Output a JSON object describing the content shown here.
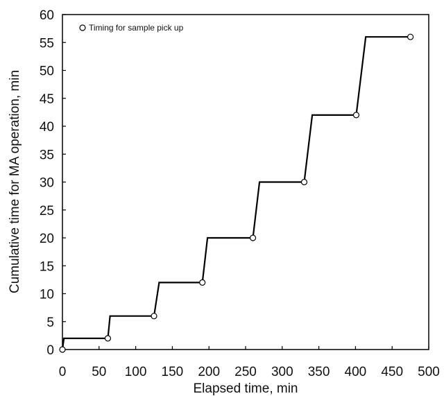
{
  "chart_data": {
    "type": "line",
    "xlabel": "Elapsed time, min",
    "ylabel": "Cumulative time for MA operation, min",
    "xlim": [
      0,
      500
    ],
    "ylim": [
      0,
      60
    ],
    "x_ticks": [
      0,
      50,
      100,
      150,
      200,
      250,
      300,
      350,
      400,
      450,
      500
    ],
    "y_ticks": [
      0,
      5,
      10,
      15,
      20,
      25,
      30,
      35,
      40,
      45,
      50,
      55,
      60
    ],
    "grid": false,
    "legend_position": "top-left",
    "series": [
      {
        "kind": "line",
        "color": "#000000",
        "points": [
          [
            0,
            0
          ],
          [
            2,
            2
          ],
          [
            62,
            2
          ],
          [
            65,
            6
          ],
          [
            125,
            6
          ],
          [
            132,
            12
          ],
          [
            191,
            12
          ],
          [
            198,
            20
          ],
          [
            260,
            20
          ],
          [
            269,
            30
          ],
          [
            330,
            30
          ],
          [
            341,
            42
          ],
          [
            401,
            42
          ],
          [
            414,
            56
          ],
          [
            475,
            56
          ]
        ]
      },
      {
        "name": "Timing for sample pick up",
        "kind": "markers",
        "marker": "open-circle",
        "color": "#000000",
        "points": [
          [
            0,
            0
          ],
          [
            62,
            2
          ],
          [
            125,
            6
          ],
          [
            191,
            12
          ],
          [
            260,
            20
          ],
          [
            330,
            30
          ],
          [
            401,
            42
          ],
          [
            475,
            56
          ]
        ]
      }
    ]
  }
}
